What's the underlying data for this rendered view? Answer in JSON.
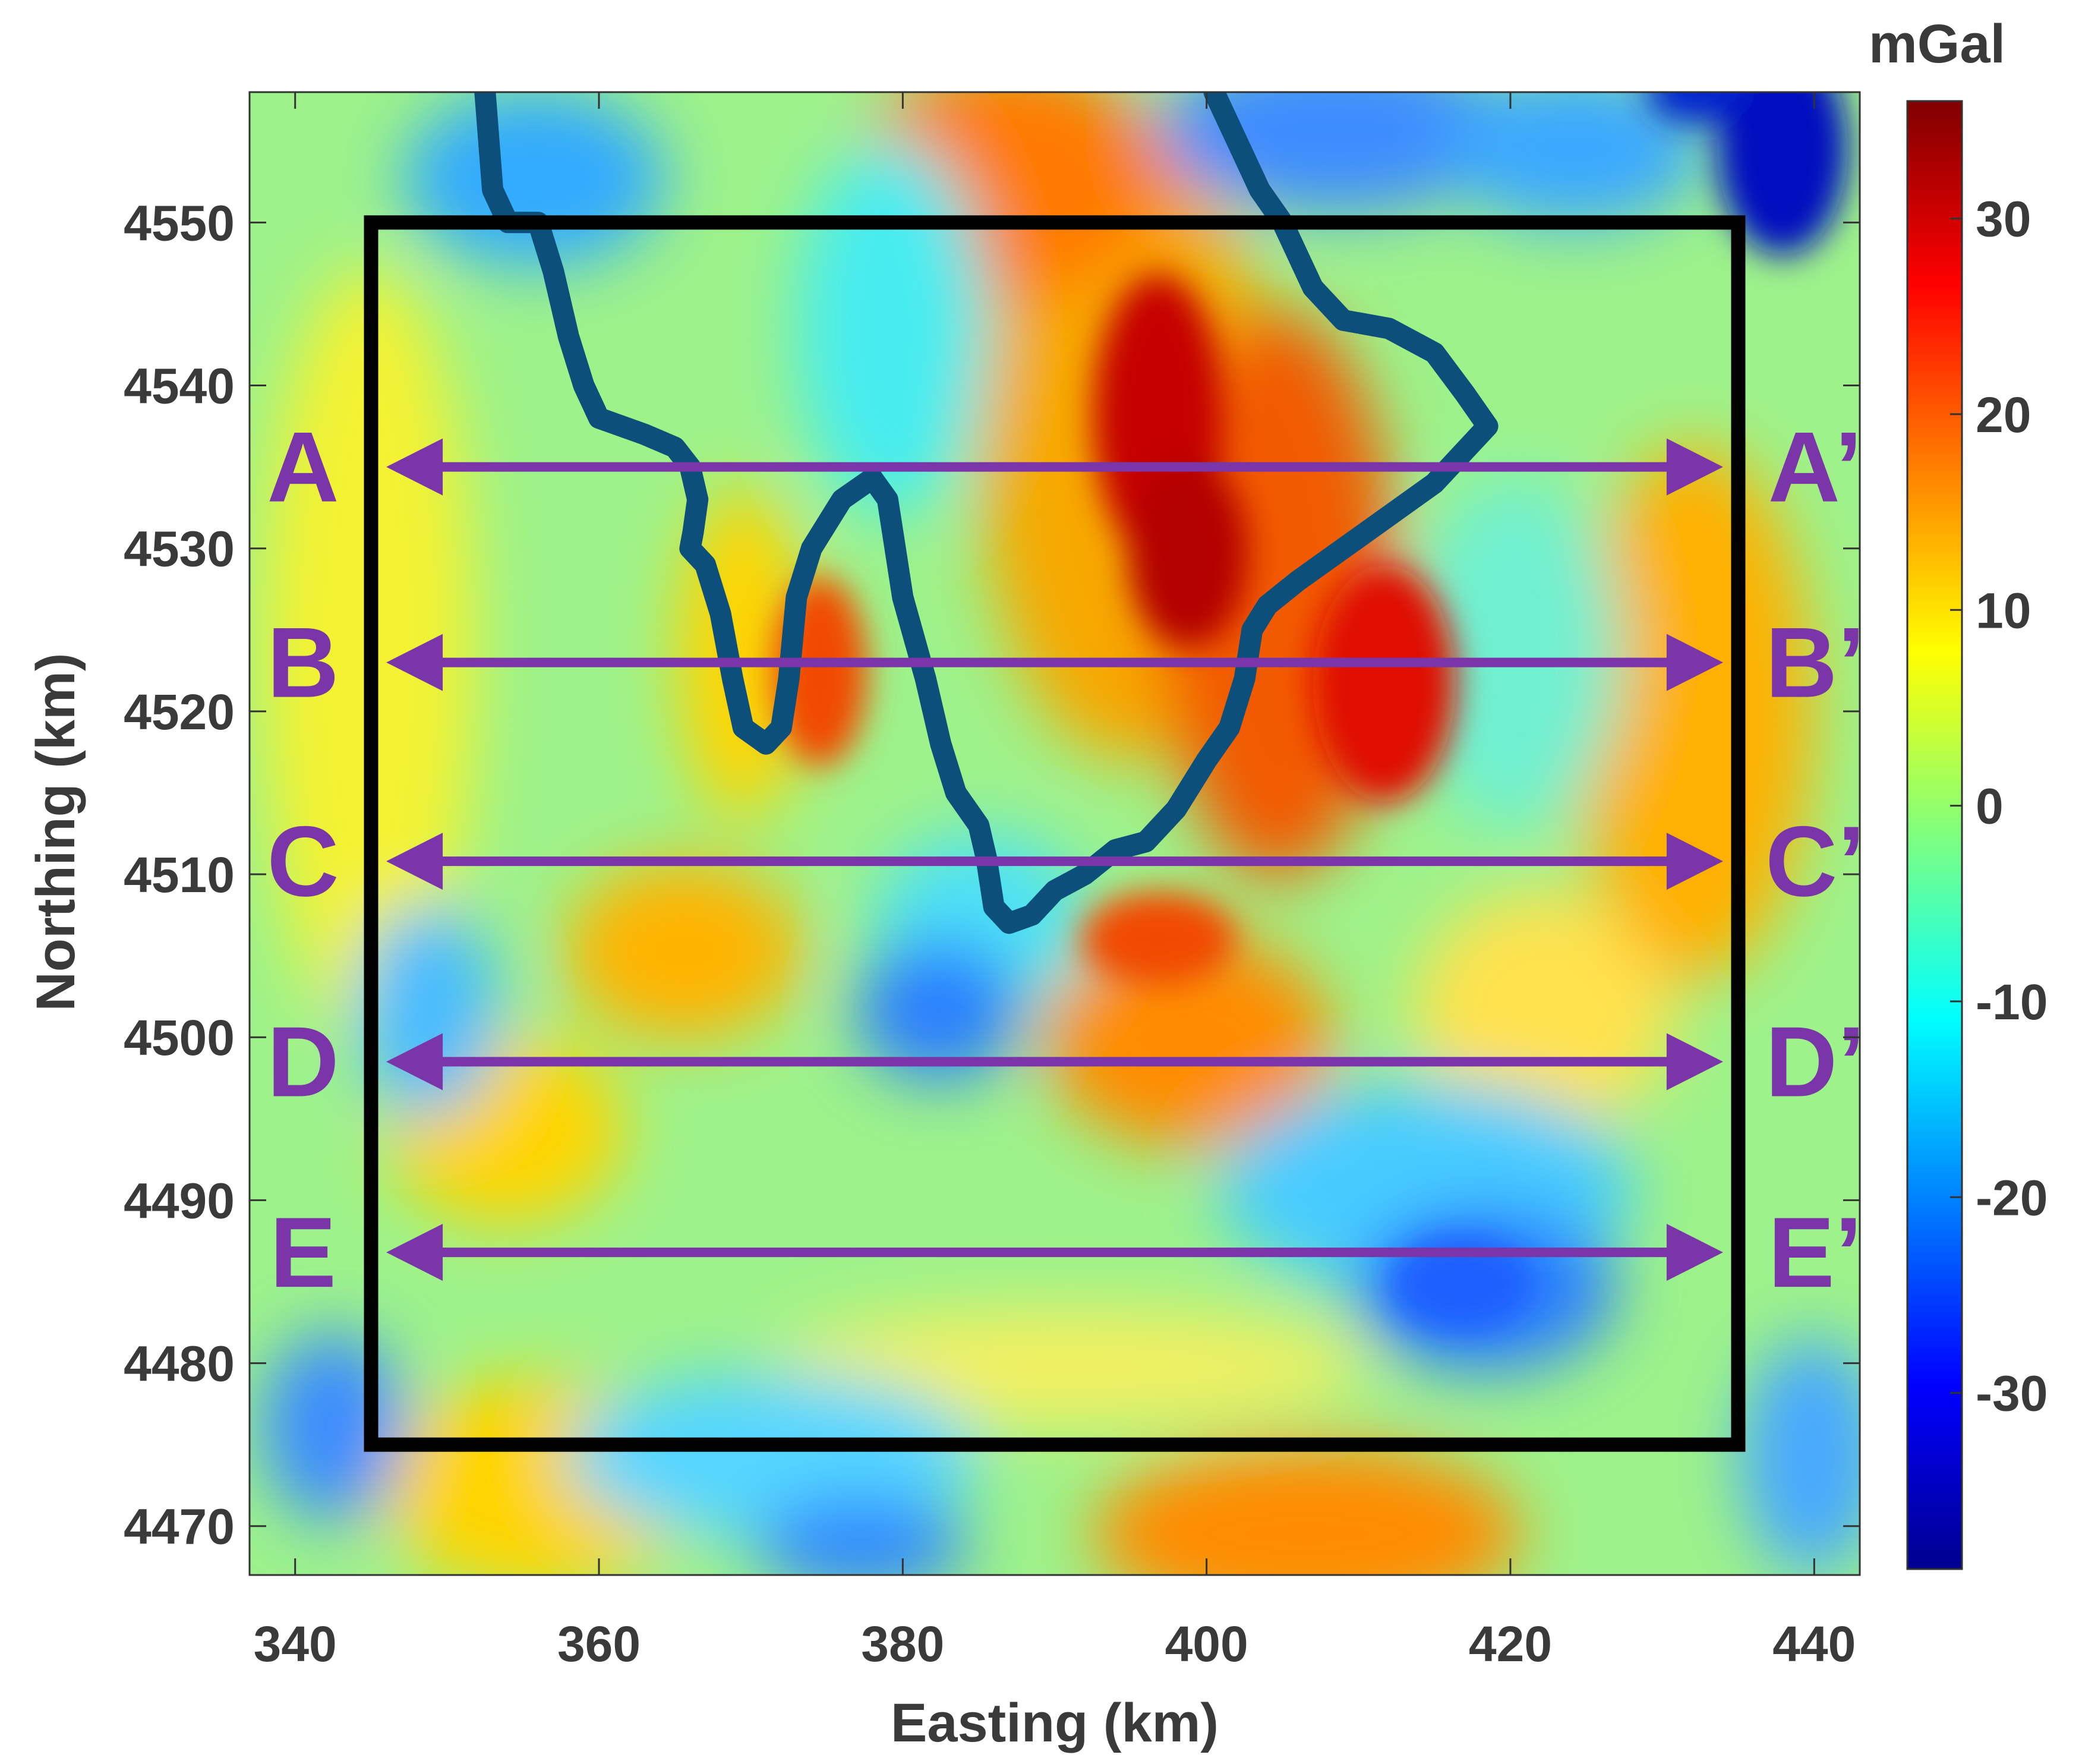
{
  "map": {
    "xlabel": "Easting (km)",
    "ylabel": "Northing (km)",
    "xlim": [
      337,
      443
    ],
    "ylim": [
      4467,
      4558
    ],
    "x_ticks": [
      340,
      360,
      380,
      400,
      420,
      440
    ],
    "y_ticks": [
      4470,
      4480,
      4490,
      4500,
      4510,
      4520,
      4530,
      4540,
      4550
    ],
    "study_area": {
      "x": [
        345,
        435
      ],
      "y": [
        4475,
        4550
      ]
    },
    "profiles": [
      {
        "start_label": "A",
        "end_label": "A’",
        "northing": 4535,
        "x_start": 346,
        "x_end": 434
      },
      {
        "start_label": "B",
        "end_label": "B’",
        "northing": 4523,
        "x_start": 346,
        "x_end": 434
      },
      {
        "start_label": "C",
        "end_label": "C’",
        "northing": 4510.8,
        "x_start": 346,
        "x_end": 434
      },
      {
        "start_label": "D",
        "end_label": "D’",
        "northing": 4498.5,
        "x_start": 346,
        "x_end": 434
      },
      {
        "start_label": "E",
        "end_label": "E’",
        "northing": 4486.8,
        "x_start": 346,
        "x_end": 434
      }
    ],
    "boundary_line": [
      [
        352.5,
        4558
      ],
      [
        353,
        4552
      ],
      [
        354,
        4550
      ],
      [
        356,
        4550
      ],
      [
        357,
        4547
      ],
      [
        358,
        4543
      ],
      [
        359,
        4540
      ],
      [
        360,
        4538
      ],
      [
        363,
        4537
      ],
      [
        365,
        4536.2
      ],
      [
        366,
        4535
      ],
      [
        366.5,
        4533
      ],
      [
        366.2,
        4531
      ],
      [
        366,
        4530
      ],
      [
        367,
        4529
      ],
      [
        368,
        4526
      ],
      [
        368.8,
        4522
      ],
      [
        369.5,
        4519
      ],
      [
        371,
        4518
      ],
      [
        372,
        4519
      ],
      [
        372.5,
        4522
      ],
      [
        373,
        4527
      ],
      [
        374,
        4530
      ],
      [
        376,
        4533
      ],
      [
        378,
        4534.3
      ],
      [
        379,
        4533
      ],
      [
        379.5,
        4530
      ],
      [
        380,
        4527
      ],
      [
        381.5,
        4522
      ],
      [
        382.5,
        4518
      ],
      [
        383.5,
        4515
      ],
      [
        385,
        4513
      ],
      [
        385.5,
        4511
      ],
      [
        386,
        4508
      ],
      [
        387,
        4507
      ],
      [
        388.5,
        4507.5
      ],
      [
        390,
        4509
      ],
      [
        392,
        4510
      ],
      [
        394,
        4511.5
      ],
      [
        396,
        4512
      ],
      [
        398,
        4514
      ],
      [
        400,
        4517
      ],
      [
        401.5,
        4519
      ],
      [
        402.5,
        4522
      ],
      [
        403,
        4525
      ],
      [
        404,
        4526.5
      ],
      [
        406,
        4528
      ],
      [
        409,
        4530
      ],
      [
        412,
        4532
      ],
      [
        415,
        4534
      ],
      [
        418,
        4537
      ],
      [
        418.5,
        4537.5
      ],
      [
        417,
        4539.5
      ],
      [
        415,
        4542
      ],
      [
        412,
        4543.5
      ],
      [
        409,
        4544
      ],
      [
        407,
        4546
      ],
      [
        405.5,
        4549
      ],
      [
        405,
        4550
      ],
      [
        403.5,
        4552
      ],
      [
        402.5,
        4554
      ],
      [
        401.5,
        4556
      ],
      [
        400.5,
        4558
      ]
    ],
    "colors": {
      "profile": "#7a35a8",
      "boundary": "#0b4f7a",
      "frame": "#000000"
    }
  },
  "colorbar": {
    "title": "mGal",
    "ticks": [
      30,
      20,
      10,
      0,
      -10,
      -20,
      -30
    ],
    "range": [
      -39,
      36
    ],
    "colormap": "jet"
  }
}
